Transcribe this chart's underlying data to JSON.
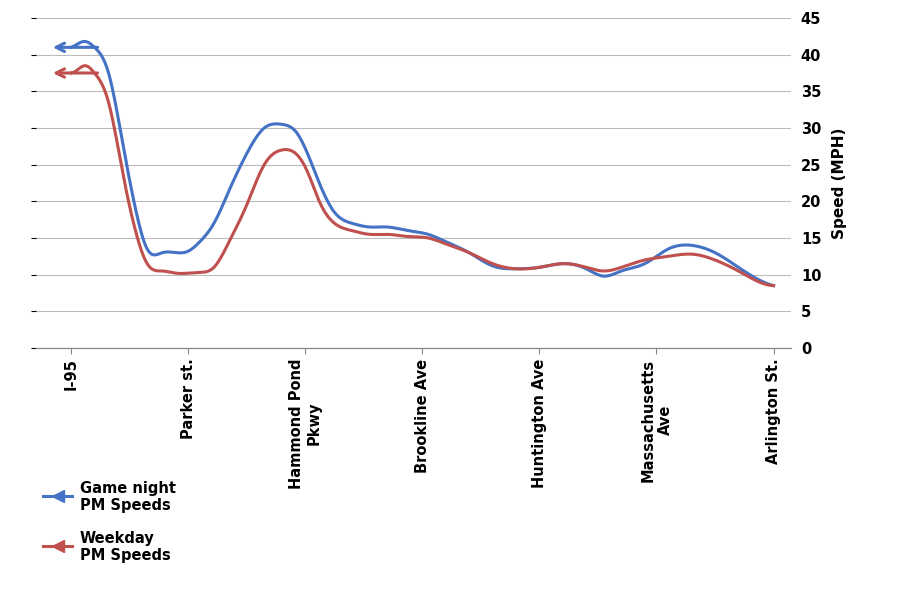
{
  "x_labels": [
    "I-95",
    "Parker st.",
    "Hammond Pond\nPkwy",
    "Brookline Ave",
    "Huntington Ave",
    "Massachusetts\nAve",
    "Arlington St."
  ],
  "x_positions": [
    0,
    1,
    2,
    3,
    4,
    5,
    6
  ],
  "blue_x": [
    0.0,
    0.06,
    0.12,
    0.2,
    0.32,
    0.44,
    0.55,
    0.65,
    0.78,
    0.9,
    1.0,
    1.1,
    1.22,
    1.35,
    1.5,
    1.65,
    1.8,
    1.92,
    2.02,
    2.12,
    2.25,
    2.4,
    2.55,
    2.7,
    2.88,
    3.05,
    3.2,
    3.4,
    3.6,
    3.8,
    4.0,
    4.2,
    4.4,
    4.55,
    4.7,
    4.9,
    5.1,
    5.3,
    5.5,
    5.7,
    5.85,
    6.0
  ],
  "blue_y": [
    41.0,
    41.5,
    41.8,
    41.0,
    37.5,
    28.0,
    19.0,
    13.5,
    13.0,
    13.0,
    13.2,
    14.5,
    17.0,
    21.5,
    26.5,
    30.0,
    30.5,
    29.5,
    26.5,
    22.5,
    18.5,
    17.0,
    16.5,
    16.5,
    16.0,
    15.5,
    14.5,
    13.0,
    11.2,
    10.8,
    11.0,
    11.5,
    10.8,
    9.8,
    10.5,
    11.5,
    13.5,
    14.0,
    13.0,
    11.0,
    9.5,
    8.5
  ],
  "red_x": [
    0.0,
    0.06,
    0.12,
    0.2,
    0.32,
    0.44,
    0.55,
    0.65,
    0.78,
    0.9,
    1.0,
    1.1,
    1.22,
    1.35,
    1.5,
    1.65,
    1.8,
    1.92,
    2.02,
    2.12,
    2.25,
    2.4,
    2.55,
    2.7,
    2.88,
    3.05,
    3.2,
    3.4,
    3.6,
    3.8,
    4.0,
    4.2,
    4.4,
    4.55,
    4.7,
    4.9,
    5.1,
    5.3,
    5.5,
    5.7,
    5.85,
    6.0
  ],
  "red_y": [
    37.5,
    38.0,
    38.5,
    37.5,
    33.5,
    24.0,
    16.0,
    11.5,
    10.5,
    10.2,
    10.2,
    10.3,
    11.0,
    14.5,
    19.5,
    25.0,
    27.0,
    26.5,
    24.0,
    20.0,
    17.0,
    16.0,
    15.5,
    15.5,
    15.2,
    15.0,
    14.2,
    13.0,
    11.5,
    10.8,
    11.0,
    11.5,
    11.0,
    10.5,
    11.0,
    12.0,
    12.5,
    12.8,
    12.0,
    10.5,
    9.2,
    8.5
  ],
  "blue_color": "#4472C4",
  "red_color": "#C0504D",
  "ylim": [
    0,
    45
  ],
  "yticks": [
    0,
    5,
    10,
    15,
    20,
    25,
    30,
    35,
    40,
    45
  ],
  "ylabel": "Speed (MPH)",
  "blue_label": "Game night\nPM Speeds",
  "red_label": "Weekday\nPM Speeds",
  "background_color": "#FFFFFF",
  "grid_color": "#BBBBBB"
}
